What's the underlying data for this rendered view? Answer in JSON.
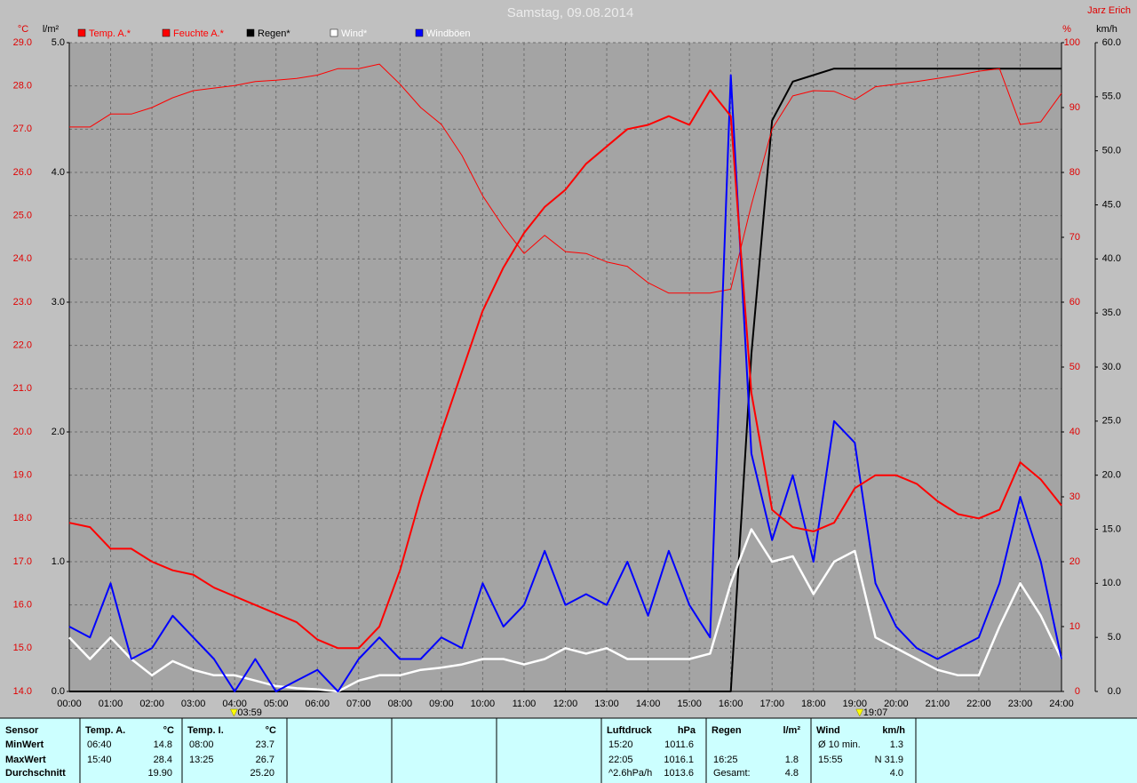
{
  "chart_data": {
    "type": "line",
    "title": "Samstag, 09.08.2014",
    "author": "Jarz Erich",
    "y_label": "°C",
    "y3_label": "l/m²",
    "y2_label": "%",
    "y4_label": "km/h",
    "x": [
      0,
      0.5,
      1,
      1.5,
      2,
      2.5,
      3,
      3.5,
      4,
      4.5,
      5,
      5.5,
      6,
      6.5,
      7,
      7.5,
      8,
      8.5,
      9,
      9.5,
      10,
      10.5,
      11,
      11.5,
      12,
      12.5,
      13,
      13.5,
      14,
      14.5,
      15,
      15.5,
      16,
      16.5,
      17,
      17.5,
      18,
      18.5,
      19,
      19.5,
      20,
      20.5,
      21,
      21.5,
      22,
      22.5,
      23,
      23.5,
      24
    ],
    "xlim": [
      0,
      24
    ],
    "xticks": [
      {
        "value": 0,
        "label": "00:00"
      },
      {
        "value": 1,
        "label": "01:00"
      },
      {
        "value": 2,
        "label": "02:00"
      },
      {
        "value": 3,
        "label": "03:00"
      },
      {
        "value": 4,
        "label": "04:00"
      },
      {
        "value": 5,
        "label": "05:00"
      },
      {
        "value": 6,
        "label": "06:00"
      },
      {
        "value": 7,
        "label": "07:00"
      },
      {
        "value": 8,
        "label": "08:00"
      },
      {
        "value": 9,
        "label": "09:00"
      },
      {
        "value": 10,
        "label": "10:00"
      },
      {
        "value": 11,
        "label": "11:00"
      },
      {
        "value": 12,
        "label": "12:00"
      },
      {
        "value": 13,
        "label": "13:00"
      },
      {
        "value": 14,
        "label": "14:00"
      },
      {
        "value": 15,
        "label": "15:00"
      },
      {
        "value": 16,
        "label": "16:00"
      },
      {
        "value": 17,
        "label": "17:00"
      },
      {
        "value": 18,
        "label": "18:00"
      },
      {
        "value": 19,
        "label": "19:00"
      },
      {
        "value": 20,
        "label": "20:00"
      },
      {
        "value": 21,
        "label": "21:00"
      },
      {
        "value": 22,
        "label": "22:00"
      },
      {
        "value": 23,
        "label": "23:00"
      },
      {
        "value": 24,
        "label": "24:00"
      }
    ],
    "ylim": [
      14,
      29
    ],
    "yticks": [
      {
        "value": 14,
        "label": "14.0"
      },
      {
        "value": 15,
        "label": "15.0"
      },
      {
        "value": 16,
        "label": "16.0"
      },
      {
        "value": 17,
        "label": "17.0"
      },
      {
        "value": 18,
        "label": "18.0"
      },
      {
        "value": 19,
        "label": "19.0"
      },
      {
        "value": 20,
        "label": "20.0"
      },
      {
        "value": 21,
        "label": "21.0"
      },
      {
        "value": 22,
        "label": "22.0"
      },
      {
        "value": 23,
        "label": "23.0"
      },
      {
        "value": 24,
        "label": "24.0"
      },
      {
        "value": 25,
        "label": "25.0"
      },
      {
        "value": 26,
        "label": "26.0"
      },
      {
        "value": 27,
        "label": "27.0"
      },
      {
        "value": 28,
        "label": "28.0"
      },
      {
        "value": 29,
        "label": "29.0"
      }
    ],
    "y2lim": [
      0,
      100
    ],
    "y2ticks": [
      0,
      10,
      20,
      30,
      40,
      50,
      60,
      70,
      80,
      90,
      100
    ],
    "y3lim": [
      0,
      5
    ],
    "y3ticks": [
      {
        "value": 0,
        "label": "0.0"
      },
      {
        "value": 1,
        "label": "1.0"
      },
      {
        "value": 2,
        "label": "2.0"
      },
      {
        "value": 3,
        "label": "3.0"
      },
      {
        "value": 4,
        "label": "4.0"
      },
      {
        "value": 5,
        "label": "5.0"
      }
    ],
    "y4lim": [
      0,
      60
    ],
    "y4ticks": [
      {
        "value": 0,
        "label": "0.0"
      },
      {
        "value": 5,
        "label": "5.0"
      },
      {
        "value": 10,
        "label": "10.0"
      },
      {
        "value": 15,
        "label": "15.0"
      },
      {
        "value": 20,
        "label": "20.0"
      },
      {
        "value": 25,
        "label": "25.0"
      },
      {
        "value": 30,
        "label": "30.0"
      },
      {
        "value": 35,
        "label": "35.0"
      },
      {
        "value": 40,
        "label": "40.0"
      },
      {
        "value": 45,
        "label": "45.0"
      },
      {
        "value": 50,
        "label": "50.0"
      },
      {
        "value": 55,
        "label": "55.0"
      },
      {
        "value": 60,
        "label": "60.0"
      }
    ],
    "grid": true,
    "series": [
      {
        "name": "Temp. A.*",
        "color": "#ff0000",
        "label_color": "#ff0000",
        "axis": "y",
        "width": 2,
        "values": [
          17.9,
          17.8,
          17.3,
          17.3,
          17.0,
          16.8,
          16.7,
          16.4,
          16.2,
          16.0,
          15.8,
          15.6,
          15.2,
          15.0,
          15.0,
          15.5,
          16.8,
          18.5,
          20.0,
          21.4,
          22.8,
          23.8,
          24.6,
          25.2,
          25.6,
          26.2,
          26.6,
          27.0,
          27.1,
          27.3,
          27.1,
          27.9,
          27.3,
          20.9,
          18.2,
          17.8,
          17.7,
          17.9,
          18.7,
          19.0,
          19.0,
          18.8,
          18.4,
          18.1,
          18.0,
          18.2,
          19.3,
          18.9,
          18.3
        ]
      },
      {
        "name": "Feuchte A.*",
        "color": "#ff0000",
        "label_color": "#ff0000",
        "axis": "y2",
        "width": 1,
        "values": [
          87,
          87,
          89,
          89,
          90,
          91.5,
          92.6,
          93,
          93.4,
          94,
          94.2,
          94.5,
          95,
          96,
          96,
          96.7,
          93.6,
          90,
          87.4,
          82.6,
          76.4,
          71.6,
          67.5,
          70.3,
          67.8,
          67.5,
          66.2,
          65.5,
          63,
          61.4,
          61.4,
          61.4,
          62,
          75,
          86.7,
          91.8,
          92.6,
          92.5,
          91.2,
          93.2,
          93.6,
          94,
          94.5,
          95,
          95.6,
          96,
          87.4,
          87.8,
          92.2
        ]
      },
      {
        "name": "Regen*",
        "color": "#000000",
        "label_color": "#000000",
        "axis": "y3",
        "width": 2,
        "values": [
          0,
          0,
          0,
          0,
          0,
          0,
          0,
          0,
          0,
          0,
          0,
          0,
          0,
          0,
          0,
          0,
          0,
          0,
          0,
          0,
          0,
          0,
          0,
          0,
          0,
          0,
          0,
          0,
          0,
          0,
          0,
          0,
          0,
          2.6,
          4.4,
          4.7,
          4.75,
          4.8,
          4.8,
          4.8,
          4.8,
          4.8,
          4.8,
          4.8,
          4.8,
          4.8,
          4.8,
          4.8,
          4.8
        ]
      },
      {
        "name": "Wind*",
        "color": "#ffffff",
        "label_color": "#ffffff",
        "axis": "y4",
        "width": 2.5,
        "values": [
          5,
          3,
          5,
          3,
          1.5,
          2.8,
          2,
          1.5,
          1.5,
          1,
          0.5,
          0.3,
          0.2,
          0,
          1,
          1.5,
          1.5,
          2,
          2.2,
          2.5,
          3,
          3,
          2.5,
          3,
          4,
          3.5,
          4,
          3,
          3,
          3,
          3,
          3.5,
          10,
          15,
          12,
          12.5,
          9,
          12,
          13,
          5,
          4,
          3,
          2,
          1.5,
          1.5,
          6,
          10,
          7,
          3
        ]
      },
      {
        "name": "Windböen",
        "color": "#0000ff",
        "label_color": "#ffffff",
        "axis": "y4",
        "width": 2,
        "values": [
          6,
          5,
          10,
          3,
          4,
          7,
          5,
          3,
          0,
          3,
          0,
          1,
          2,
          0,
          3,
          5,
          3,
          3,
          5,
          4,
          10,
          6,
          8,
          13,
          8,
          9,
          8,
          12,
          7,
          13,
          8,
          5,
          57,
          22,
          14,
          20,
          12,
          25,
          23,
          10,
          6,
          4,
          3,
          4,
          5,
          10,
          18,
          12,
          3
        ]
      }
    ],
    "annotations": [
      {
        "x": 3.983,
        "label": "03:59"
      },
      {
        "x": 19.117,
        "label": "19:07"
      }
    ]
  },
  "stats": {
    "sensor": {
      "header": "Sensor",
      "rows": [
        "MinWert",
        "MaxWert",
        "Durchschnitt"
      ]
    },
    "columns": [
      {
        "header": [
          "Temp. A.",
          "°C"
        ],
        "rows": [
          [
            "06:40",
            "14.8"
          ],
          [
            "15:40",
            "28.4"
          ],
          [
            "19.90"
          ]
        ]
      },
      {
        "header": [
          "Temp. I.",
          "°C"
        ],
        "rows": [
          [
            "08:00",
            "23.7"
          ],
          [
            "13:25",
            "26.7"
          ],
          [
            "25.20"
          ]
        ]
      },
      {
        "header": [
          "Luftdruck",
          "hPa"
        ],
        "rows": [
          [
            "15:20",
            "1011.6"
          ],
          [
            "22:05",
            "1016.1"
          ],
          [
            "^2.6hPa/h",
            "1013.6"
          ]
        ]
      },
      {
        "header": [
          "Regen",
          "l/m²"
        ],
        "rows": [
          null,
          [
            "16:25",
            "1.8"
          ],
          [
            "Gesamt:",
            "4.8"
          ]
        ]
      },
      {
        "header": [
          "Wind",
          "km/h"
        ],
        "rows": [
          [
            "Ø 10 min.",
            "1.3"
          ],
          [
            "15:55",
            "N 31.9"
          ],
          [
            "4.0"
          ]
        ]
      }
    ]
  }
}
